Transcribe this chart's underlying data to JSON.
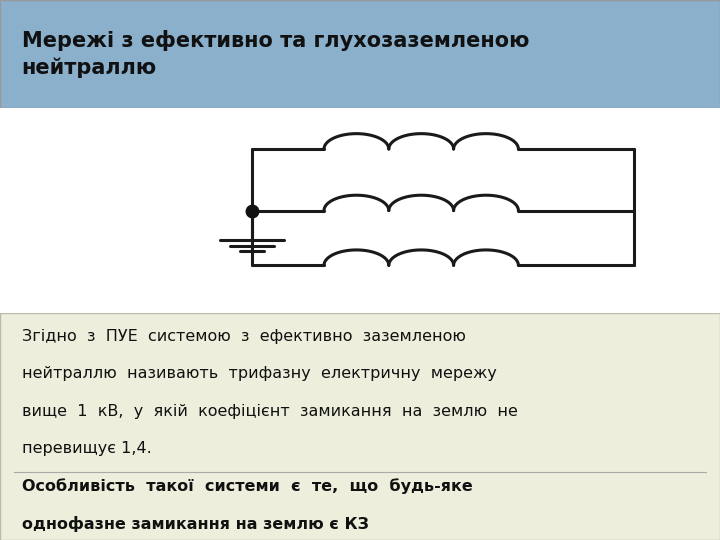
{
  "title_text": "Мережі з ефективно та глухозаземленою\nнейтраллю",
  "title_bg": "#8ab0cc",
  "body_bg": "#eeeedd",
  "fig_bg": "#ffffff",
  "main_text_line1": "Згідно  з  ПУЕ  системою  з  ефективно  заземленою",
  "main_text_line2": "нейтраллю  називають  трифазну  електричну  мережу",
  "main_text_line3": "вище  1  кВ,  у  якій  коефіцієнт  замикання  на  землю  не",
  "main_text_line4": "перевищує 1,4.",
  "bold_text_line1": "Особливість  такої  системи  є  те,  що  будь-яке",
  "bold_text_line2": "однофазне замикання на землю є КЗ",
  "line_color": "#1a1a1a",
  "dot_color": "#111111"
}
